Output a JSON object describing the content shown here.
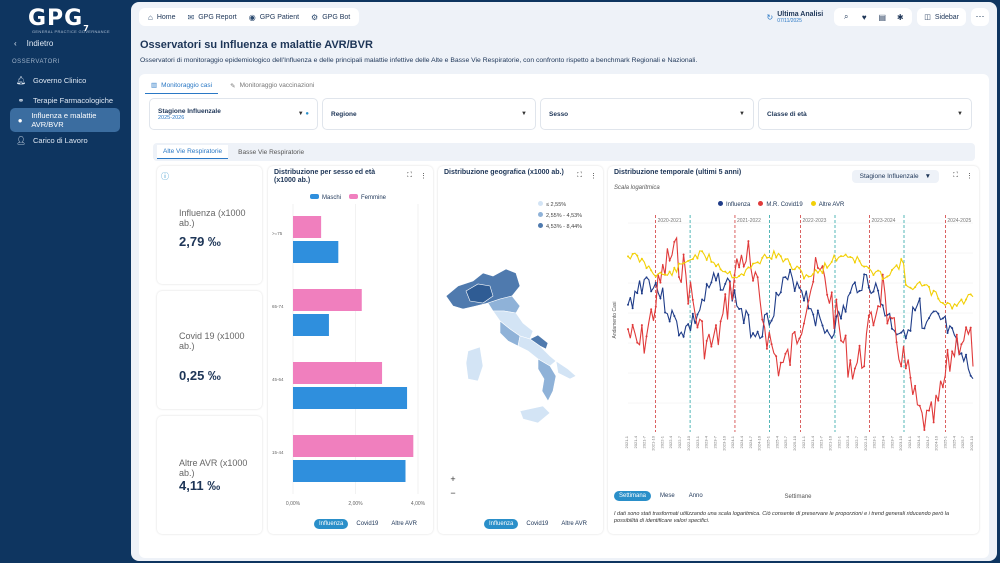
{
  "brand": {
    "logo": "GPG",
    "logo_sup": "7",
    "logo_sub": "GENERAL PRACTICE GOVERNANCE"
  },
  "sidebar": {
    "back": "Indietro",
    "section": "OSSERVATORI",
    "items": [
      {
        "label": "Governo Clinico",
        "icon": "bell-icon"
      },
      {
        "label": "Terapie Farmacologiche",
        "icon": "pills-icon"
      },
      {
        "label": "Influenza e malattie AVR/BVR",
        "icon": "virus-icon",
        "active": true
      },
      {
        "label": "Carico di Lavoro",
        "icon": "user-icon"
      }
    ]
  },
  "topbar": {
    "home": "Home",
    "report": "GPG Report",
    "patient": "GPG Patient",
    "bot": "GPG Bot",
    "last_label": "Ultima Analisi",
    "last_date": "07/11/2025",
    "sidebar": "Sidebar"
  },
  "page": {
    "title": "Osservatori su Influenza e malattie AVR/BVR",
    "description": "Osservatori di monitoraggio epidemiologico dell'Influenza e delle principali malattie infettive delle Alte e Basse Vie Respiratorie, con confronto rispetto a benchmark Regionali e Nazionali."
  },
  "tabs": [
    "Monitoraggio casi",
    "Monitoraggio vaccinazioni"
  ],
  "filters": {
    "season_label": "Stagione Influenzale",
    "season_value": "2025-2026",
    "region": "Regione",
    "sex": "Sesso",
    "age": "Classe di età"
  },
  "subtabs": [
    "Alte Vie Respiratorie",
    "Basse Vie Respiratorie"
  ],
  "kpis": [
    {
      "label": "Influenza (x1000 ab.)",
      "value": "2,79 ‰"
    },
    {
      "label": "Covid 19 (x1000 ab.)",
      "value": "0,25 ‰"
    },
    {
      "label": "Altre AVR (x1000 ab.)",
      "value": "4,11 ‰"
    }
  ],
  "sexage": {
    "title": "Distribuzione per sesso ed età (x1000 ab.)",
    "legend": [
      "Maschi",
      "Femmine"
    ],
    "ages": [
      ">=75",
      "65-74",
      "45-64",
      "15-44"
    ],
    "maschi": [
      1.45,
      1.15,
      3.65,
      3.6
    ],
    "femmine": [
      0.9,
      2.2,
      2.85,
      3.85
    ],
    "ticks": [
      "0,00%",
      "2,00%",
      "4,00%"
    ],
    "pills": [
      "Influenza",
      "Covid19",
      "Altre AVR"
    ],
    "colors": {
      "maschi": "#2f8fdd",
      "femmine": "#f07fbe"
    }
  },
  "geo": {
    "title": "Distribuzione geografica (x1000 ab.)",
    "legend": [
      "≤ 2,55%",
      "2,55% - 4,53%",
      "4,53% - 8,44%"
    ],
    "pills": [
      "Influenza",
      "Covid19",
      "Altre AVR"
    ],
    "zoom_in": "+",
    "zoom_out": "−"
  },
  "trend": {
    "title": "Distribuzione temporale (ultimi 5 anni)",
    "subtitle": "Scala logaritmica",
    "dropdown": "Stagione Influenzale",
    "legend": [
      "Influenza",
      "M.R. Covid19",
      "Altre AVR"
    ],
    "colors": [
      "#1f3c88",
      "#e03a3a",
      "#f2d008"
    ],
    "ylabel": "Andamento Casi",
    "xlabel": "Settimane",
    "seasons": [
      "2020-2021",
      "2021-2022",
      "2022-2023",
      "2023-2024",
      "2024-2025"
    ],
    "granularity": [
      "Settimana",
      "Mese",
      "Anno"
    ],
    "note": "I dati sono stati trasformati utilizzando una scala logaritmica. Ciò consente di preservare le proporzioni e i trend generali riducendo però la possibilità di identificare valori specifici."
  }
}
